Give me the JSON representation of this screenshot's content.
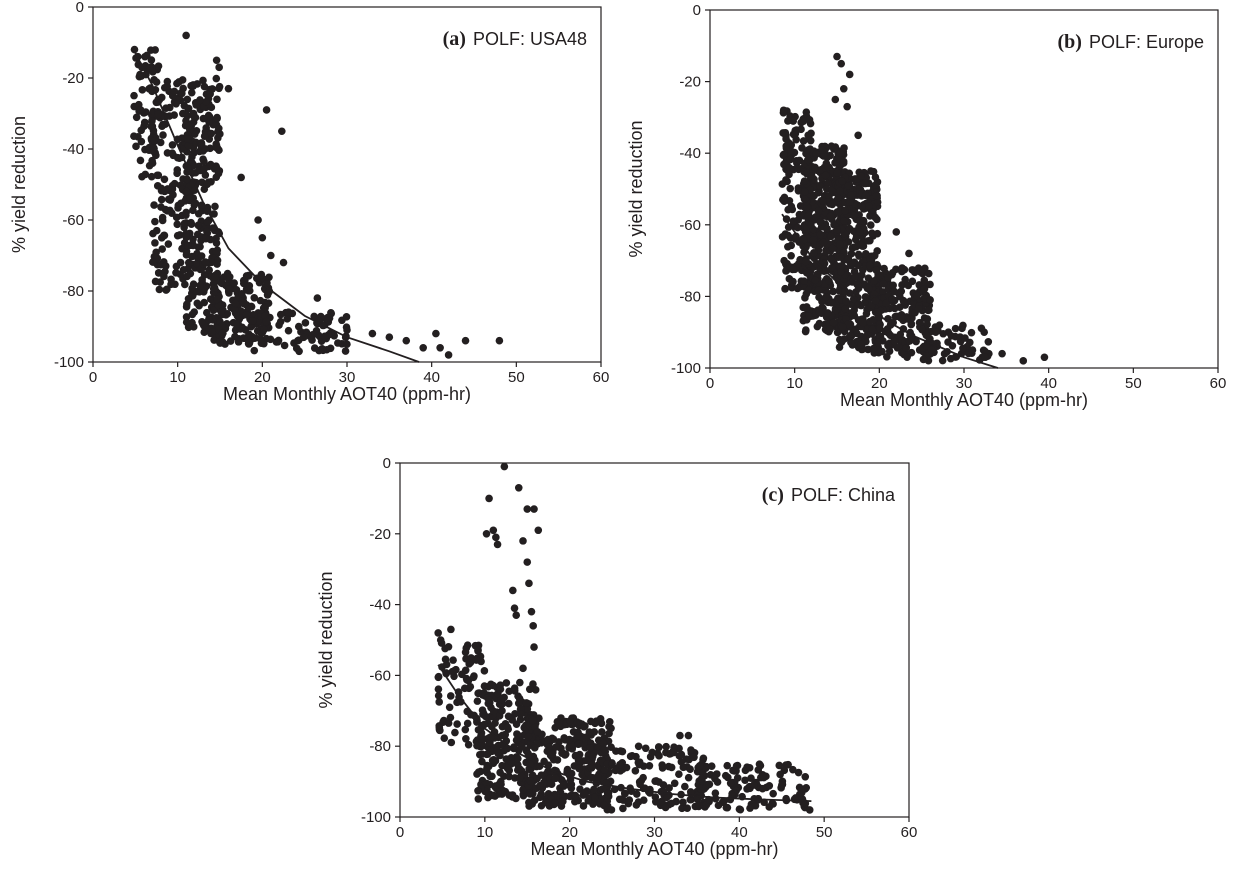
{
  "colors": {
    "ink": "#231f20",
    "background": "#ffffff"
  },
  "chart_data": [
    {
      "type": "scatter",
      "panel": "(a)",
      "title": "POLF: USA48",
      "xlabel": "Mean Monthly AOT40 (ppm-hr)",
      "ylabel": "% yield reduction",
      "xlim": [
        0,
        60
      ],
      "ylim": [
        -100,
        0
      ],
      "xticks": [
        "0",
        "10",
        "20",
        "30",
        "40",
        "50",
        "60"
      ],
      "yticks": [
        "0",
        "-20",
        "-40",
        "-60",
        "-80",
        "-100"
      ],
      "grid": false,
      "fit_curve": {
        "x": [
          5,
          7,
          10,
          13,
          16,
          20,
          25,
          30,
          35,
          38.5
        ],
        "y": [
          -13,
          -22,
          -39,
          -55,
          -68,
          -78,
          -87,
          -93,
          -97,
          -100
        ]
      },
      "points_summary": {
        "clusters": [
          {
            "x_range": [
              4.8,
              8
            ],
            "y_range": [
              -48,
              -12
            ],
            "count": 70
          },
          {
            "x_range": [
              7,
              12
            ],
            "y_range": [
              -80,
              -20
            ],
            "count": 170
          },
          {
            "x_range": [
              11,
              15
            ],
            "y_range": [
              -92,
              -20
            ],
            "count": 250
          },
          {
            "x_range": [
              14,
              21
            ],
            "y_range": [
              -95,
              -75
            ],
            "count": 180
          },
          {
            "x_range": [
              19,
              30
            ],
            "y_range": [
              -97,
              -85
            ],
            "count": 80
          }
        ],
        "points": [
          [
            4.9,
            -12
          ],
          [
            5.3,
            -14
          ],
          [
            11,
            -8
          ],
          [
            14.6,
            -15
          ],
          [
            14.9,
            -17
          ],
          [
            16,
            -23
          ],
          [
            20.5,
            -29
          ],
          [
            22.3,
            -35
          ],
          [
            17.5,
            -48
          ],
          [
            19.5,
            -60
          ],
          [
            20,
            -65
          ],
          [
            21,
            -70
          ],
          [
            22.5,
            -72
          ],
          [
            26.5,
            -82
          ],
          [
            30,
            -91
          ],
          [
            33,
            -92
          ],
          [
            35,
            -93
          ],
          [
            37,
            -94
          ],
          [
            39,
            -96
          ],
          [
            40.5,
            -92
          ],
          [
            41,
            -96
          ],
          [
            42,
            -98
          ],
          [
            44,
            -94
          ],
          [
            48,
            -94
          ]
        ]
      }
    },
    {
      "type": "scatter",
      "panel": "(b)",
      "title": "POLF: Europe",
      "xlabel": "Mean Monthly AOT40 (ppm-hr)",
      "ylabel": "% yield reduction",
      "xlim": [
        0,
        60
      ],
      "ylim": [
        -100,
        0
      ],
      "xticks": [
        "0",
        "10",
        "20",
        "30",
        "40",
        "50",
        "60"
      ],
      "yticks": [
        "0",
        "-20",
        "-40",
        "-60",
        "-80",
        "-100"
      ],
      "grid": false,
      "fit_curve": {
        "x": [
          8.5,
          10,
          12,
          15,
          18,
          21,
          24,
          27,
          30,
          34
        ],
        "y": [
          -57,
          -62,
          -69,
          -76,
          -82,
          -87,
          -91,
          -94,
          -97,
          -100
        ]
      },
      "points_summary": {
        "clusters": [
          {
            "x_range": [
              8.5,
              12
            ],
            "y_range": [
              -78,
              -28
            ],
            "count": 150
          },
          {
            "x_range": [
              11,
              16
            ],
            "y_range": [
              -90,
              -38
            ],
            "count": 450
          },
          {
            "x_range": [
              15,
              20
            ],
            "y_range": [
              -95,
              -45
            ],
            "count": 350
          },
          {
            "x_range": [
              19,
              26
            ],
            "y_range": [
              -97,
              -72
            ],
            "count": 200
          },
          {
            "x_range": [
              25,
              33
            ],
            "y_range": [
              -98,
              -88
            ],
            "count": 60
          }
        ],
        "points": [
          [
            15,
            -13
          ],
          [
            15.5,
            -15
          ],
          [
            16.5,
            -18
          ],
          [
            15.8,
            -22
          ],
          [
            14.8,
            -25
          ],
          [
            8.7,
            -28
          ],
          [
            9.2,
            -31
          ],
          [
            10,
            -35
          ],
          [
            9,
            -38
          ],
          [
            16.2,
            -27
          ],
          [
            17.5,
            -35
          ],
          [
            19,
            -45
          ],
          [
            22,
            -62
          ],
          [
            23.5,
            -68
          ],
          [
            26,
            -81
          ],
          [
            29,
            -89
          ],
          [
            31,
            -95
          ],
          [
            32.5,
            -97
          ],
          [
            34.5,
            -96
          ],
          [
            37,
            -98
          ],
          [
            39.5,
            -97
          ]
        ]
      }
    },
    {
      "type": "scatter",
      "panel": "(c)",
      "title": "POLF: China",
      "xlabel": "Mean Monthly AOT40 (ppm-hr)",
      "ylabel": "% yield reduction",
      "xlim": [
        0,
        60
      ],
      "ylim": [
        -100,
        0
      ],
      "xticks": [
        "0",
        "10",
        "20",
        "30",
        "40",
        "50",
        "60"
      ],
      "yticks": [
        "0",
        "-20",
        "-40",
        "-60",
        "-80",
        "-100"
      ],
      "grid": false,
      "fit_curve": {
        "x": [
          4.5,
          7,
          10,
          14,
          18,
          22,
          27,
          32,
          37,
          42,
          48.5
        ],
        "y": [
          -57,
          -66,
          -75,
          -82,
          -87,
          -90,
          -92,
          -93.5,
          -94.5,
          -95,
          -95.5
        ]
      },
      "points_summary": {
        "clusters": [
          {
            "x_range": [
              4.5,
              10
            ],
            "y_range": [
              -80,
              -50
            ],
            "count": 80
          },
          {
            "x_range": [
              9,
              16
            ],
            "y_range": [
              -95,
              -62
            ],
            "count": 230
          },
          {
            "x_range": [
              15,
              25
            ],
            "y_range": [
              -97,
              -72
            ],
            "count": 300
          },
          {
            "x_range": [
              24,
              36
            ],
            "y_range": [
              -98,
              -80
            ],
            "count": 140
          },
          {
            "x_range": [
              35,
              48
            ],
            "y_range": [
              -98,
              -85
            ],
            "count": 120
          }
        ],
        "points": [
          [
            12.3,
            -1
          ],
          [
            14,
            -7
          ],
          [
            10.5,
            -10
          ],
          [
            10.2,
            -20
          ],
          [
            11,
            -19
          ],
          [
            11.3,
            -21
          ],
          [
            11.5,
            -23
          ],
          [
            15,
            -13
          ],
          [
            15.8,
            -13
          ],
          [
            16.3,
            -19
          ],
          [
            14.5,
            -22
          ],
          [
            15,
            -28
          ],
          [
            15.2,
            -34
          ],
          [
            13.3,
            -36
          ],
          [
            13.5,
            -41
          ],
          [
            13.7,
            -43
          ],
          [
            15.5,
            -42
          ],
          [
            15.7,
            -46
          ],
          [
            15.8,
            -52
          ],
          [
            4.5,
            -48
          ],
          [
            4.8,
            -50
          ],
          [
            6,
            -47
          ],
          [
            14.5,
            -58
          ],
          [
            10.5,
            -67
          ],
          [
            22.5,
            -73
          ],
          [
            33,
            -77
          ],
          [
            34,
            -77
          ],
          [
            45,
            -91
          ],
          [
            46.5,
            -95
          ],
          [
            47.5,
            -96
          ],
          [
            48.3,
            -98
          ]
        ]
      }
    }
  ]
}
